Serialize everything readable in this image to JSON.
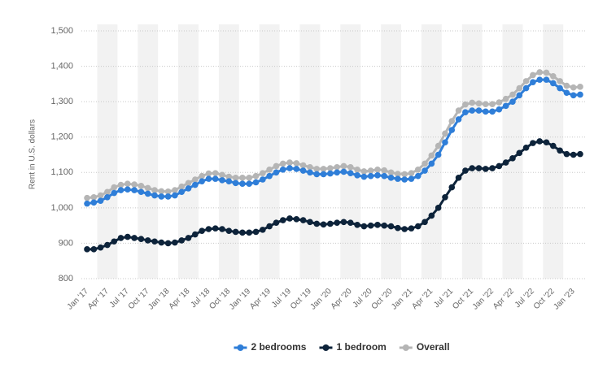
{
  "chart_data": {
    "type": "line",
    "y_label": "Rent in U.S. dollars",
    "categories": [
      "Jan '17",
      null,
      null,
      "Apr '17",
      null,
      null,
      "Jul '17",
      null,
      null,
      "Oct '17",
      null,
      null,
      "Jan '18",
      null,
      null,
      "Apr '18",
      null,
      null,
      "Jul '18",
      null,
      null,
      "Oct '18",
      null,
      null,
      "Jan '19",
      null,
      null,
      "Apr '19",
      null,
      null,
      "Jul '19",
      null,
      null,
      "Oct '19",
      null,
      null,
      "Jan '20",
      null,
      null,
      "Apr '20",
      null,
      null,
      "Jul '20",
      null,
      null,
      "Oct '20",
      null,
      null,
      "Jan '21",
      null,
      null,
      "Apr '21",
      null,
      null,
      "Jul '21",
      null,
      null,
      "Oct '21",
      null,
      null,
      "Jan '22",
      null,
      null,
      "Apr '22",
      null,
      null,
      "Jul '22",
      null,
      null,
      "Oct '22",
      null,
      null,
      "Jan '23",
      null
    ],
    "series": [
      {
        "name": "2 bedrooms",
        "color": "#2f7ed8",
        "values": [
          1012,
          1015,
          1020,
          1030,
          1042,
          1050,
          1052,
          1050,
          1045,
          1040,
          1035,
          1032,
          1032,
          1035,
          1045,
          1055,
          1065,
          1075,
          1082,
          1082,
          1078,
          1075,
          1070,
          1068,
          1068,
          1072,
          1080,
          1090,
          1100,
          1108,
          1112,
          1110,
          1105,
          1100,
          1095,
          1095,
          1097,
          1100,
          1102,
          1098,
          1092,
          1088,
          1090,
          1092,
          1090,
          1085,
          1082,
          1080,
          1082,
          1090,
          1105,
          1125,
          1150,
          1185,
          1220,
          1250,
          1270,
          1275,
          1275,
          1272,
          1272,
          1278,
          1288,
          1300,
          1318,
          1338,
          1355,
          1362,
          1362,
          1352,
          1338,
          1325,
          1318,
          1320
        ]
      },
      {
        "name": "1 bedroom",
        "color": "#0d233a",
        "values": [
          883,
          883,
          888,
          895,
          905,
          915,
          918,
          915,
          912,
          908,
          905,
          902,
          900,
          902,
          908,
          915,
          925,
          935,
          940,
          942,
          940,
          935,
          932,
          930,
          930,
          932,
          938,
          948,
          958,
          965,
          970,
          968,
          965,
          960,
          955,
          953,
          955,
          958,
          960,
          958,
          952,
          948,
          950,
          952,
          950,
          948,
          943,
          940,
          942,
          948,
          960,
          978,
          1000,
          1030,
          1058,
          1085,
          1105,
          1112,
          1112,
          1110,
          1112,
          1118,
          1128,
          1140,
          1155,
          1170,
          1183,
          1188,
          1185,
          1175,
          1162,
          1152,
          1150,
          1152
        ]
      },
      {
        "name": "Overall",
        "color": "#b5b5b5",
        "values": [
          1028,
          1030,
          1035,
          1045,
          1058,
          1065,
          1068,
          1066,
          1062,
          1056,
          1050,
          1047,
          1046,
          1050,
          1060,
          1070,
          1080,
          1090,
          1097,
          1098,
          1093,
          1088,
          1085,
          1085,
          1085,
          1090,
          1098,
          1108,
          1118,
          1125,
          1128,
          1126,
          1120,
          1115,
          1110,
          1110,
          1112,
          1115,
          1118,
          1115,
          1108,
          1103,
          1105,
          1108,
          1106,
          1100,
          1096,
          1095,
          1098,
          1108,
          1125,
          1148,
          1175,
          1210,
          1245,
          1275,
          1292,
          1297,
          1295,
          1293,
          1293,
          1298,
          1308,
          1320,
          1338,
          1358,
          1375,
          1383,
          1382,
          1372,
          1358,
          1345,
          1340,
          1342
        ]
      }
    ],
    "ylim": [
      800,
      1500
    ],
    "yticks": [
      800,
      900,
      {
        "value": 1000,
        "label": "1,000"
      },
      {
        "value": 1100,
        "label": "1,100"
      },
      {
        "value": 1200,
        "label": "1,200"
      },
      {
        "value": 1300,
        "label": "1,300"
      },
      {
        "value": 1400,
        "label": "1,400"
      },
      {
        "value": 1500,
        "label": "1,500"
      }
    ],
    "grid": true,
    "legend": "bottom"
  }
}
